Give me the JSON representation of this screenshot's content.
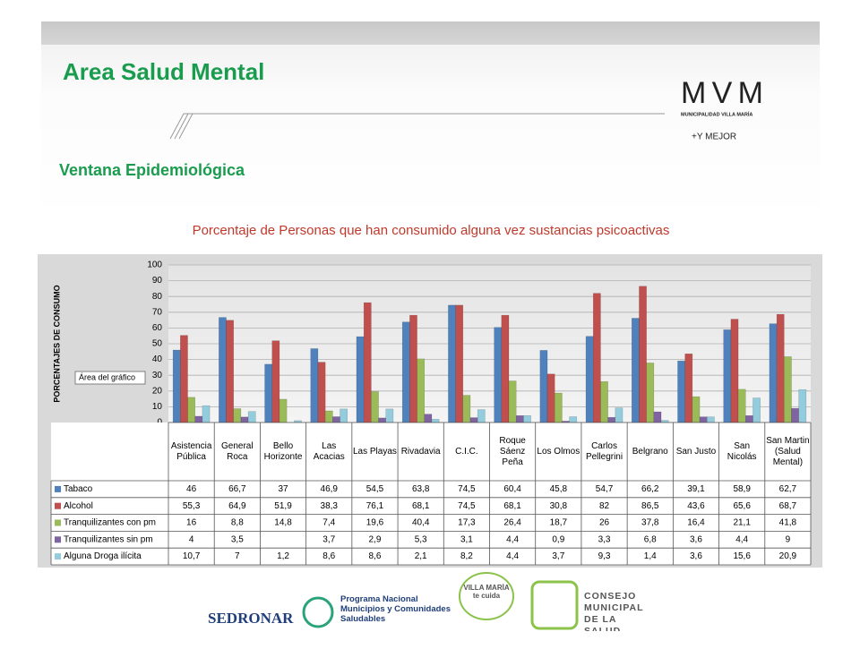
{
  "header": {
    "title": "Area Salud Mental",
    "subtitle": "Ventana Epidemiológica",
    "logo_main": "MVM",
    "logo_sub": "MUNICIPALIDAD VILLA MARÍA",
    "logo_slogan": "+Y MEJOR"
  },
  "chart_data": {
    "type": "bar",
    "title": "Porcentaje de Personas que han consumido alguna vez sustancias psicoactivas",
    "y_label": "PORCENTAJES DE CONSUMO",
    "tooltip": "Área del gráfico",
    "categories": [
      "Asistencia Pública",
      "General Roca",
      "Bello Horizonte",
      "Las Acacias",
      "Las Playas",
      "Rivadavia",
      "C.I.C.",
      "Roque Sáenz Peña",
      "Los Olmos",
      "Carlos Pellegrini",
      "Belgrano",
      "San Justo",
      "San Nicolás",
      "San Martin (Salud Mental)"
    ],
    "series": [
      {
        "name": "Tabaco",
        "color": "#4f81bd",
        "values": [
          46,
          66.7,
          37,
          46.9,
          54.5,
          63.8,
          74.5,
          60.4,
          45.8,
          54.7,
          66.2,
          39.1,
          58.9,
          62.7
        ],
        "value_labels": [
          "46",
          "66,7",
          "37",
          "46,9",
          "54,5",
          "63,8",
          "74,5",
          "60,4",
          "45,8",
          "54,7",
          "66,2",
          "39,1",
          "58,9",
          "62,7"
        ]
      },
      {
        "name": "Alcohol",
        "color": "#c0504d",
        "values": [
          55.3,
          64.9,
          51.9,
          38.3,
          76.1,
          68.1,
          74.5,
          68.1,
          30.8,
          82,
          86.5,
          43.6,
          65.6,
          68.7
        ],
        "value_labels": [
          "55,3",
          "64,9",
          "51,9",
          "38,3",
          "76,1",
          "68,1",
          "74,5",
          "68,1",
          "30,8",
          "82",
          "86,5",
          "43,6",
          "65,6",
          "68,7"
        ]
      },
      {
        "name": "Tranquilizantes con pm",
        "color": "#9bbb59",
        "values": [
          16,
          8.8,
          14.8,
          7.4,
          19.6,
          40.4,
          17.3,
          26.4,
          18.7,
          26,
          37.8,
          16.4,
          21.1,
          41.8
        ],
        "value_labels": [
          "16",
          "8,8",
          "14,8",
          "7,4",
          "19,6",
          "40,4",
          "17,3",
          "26,4",
          "18,7",
          "26",
          "37,8",
          "16,4",
          "21,1",
          "41,8"
        ]
      },
      {
        "name": "Tranquilizantes sin pm",
        "color": "#8064a2",
        "values": [
          4,
          3.5,
          null,
          3.7,
          2.9,
          5.3,
          3.1,
          4.4,
          0.9,
          3.3,
          6.8,
          3.6,
          4.4,
          9
        ],
        "value_labels": [
          "4",
          "3,5",
          null,
          "3,7",
          "2,9",
          "5,3",
          "3,1",
          "4,4",
          "0,9",
          "3,3",
          "6,8",
          "3,6",
          "4,4",
          "9"
        ]
      },
      {
        "name": "Alguna Droga ilícita",
        "color": "#93cddd",
        "values": [
          10.7,
          7,
          1.2,
          8.6,
          8.6,
          2.1,
          8.2,
          4.4,
          3.7,
          9.3,
          1.4,
          3.6,
          15.6,
          20.9
        ],
        "value_labels": [
          "10,7",
          "7",
          "1,2",
          "8,6",
          "8,6",
          "2,1",
          "8,2",
          "4,4",
          "3,7",
          "9,3",
          "1,4",
          "3,6",
          "15,6",
          "20,9"
        ]
      }
    ],
    "ylim": [
      0,
      100
    ],
    "yticks": [
      0,
      10,
      20,
      30,
      40,
      50,
      60,
      70,
      80,
      90,
      100
    ],
    "grid": true
  },
  "footer": {
    "logo1": "SEDRONAR",
    "logo2": "Programa Nacional Municipios y Comunidades Saludables",
    "logo3": "VILLA MARÍA te cuida",
    "logo4": "CONSEJO MUNICIPAL DE LA SALUD"
  }
}
